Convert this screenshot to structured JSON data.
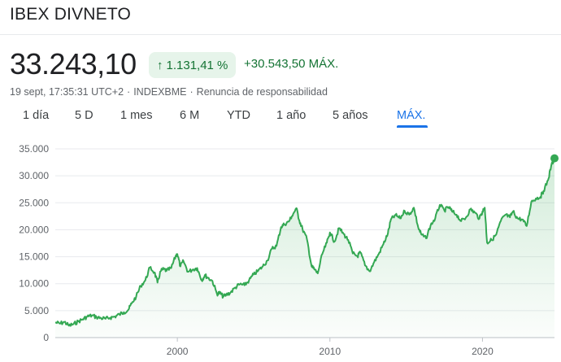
{
  "header": {
    "title": "IBEX DIVNETO",
    "price": "33.243,10",
    "change_percent": "1.131,41 %",
    "change_arrow": "↑",
    "change_absolute": "+30.543,50 MÁX.",
    "meta": {
      "timestamp": "19 sept, 17:35:31 UTC+2",
      "separator": "·",
      "exchange": "INDEXBME",
      "disclaimer": "Renuncia de responsabilidad"
    },
    "accent_color": "#137333",
    "line_color": "#34a853"
  },
  "tabs": [
    {
      "label": "1 día",
      "active": false
    },
    {
      "label": "5 D",
      "active": false
    },
    {
      "label": "1 mes",
      "active": false
    },
    {
      "label": "6 M",
      "active": false
    },
    {
      "label": "YTD",
      "active": false
    },
    {
      "label": "1 año",
      "active": false
    },
    {
      "label": "5 años",
      "active": false
    },
    {
      "label": "MÁX.",
      "active": true
    }
  ],
  "chart_data": {
    "type": "area",
    "x_range": [
      1992.0,
      2024.72
    ],
    "ylim": [
      0,
      35000
    ],
    "y_ticks": [
      0,
      5000,
      10000,
      15000,
      20000,
      25000,
      30000,
      35000
    ],
    "y_tick_labels": [
      "0",
      "5.000",
      "10.000",
      "15.000",
      "20.000",
      "25.000",
      "30.000",
      "35.000"
    ],
    "x_ticks": [
      2000,
      2010,
      2020
    ],
    "x_tick_labels": [
      "2000",
      "2010",
      "2020"
    ],
    "grid": true,
    "legend": "none",
    "series": [
      {
        "x": [
          1992.0,
          1992.3,
          1992.6,
          1992.9,
          1993.2,
          1993.5,
          1993.8,
          1994.1,
          1994.4,
          1994.7,
          1995.0,
          1995.3,
          1995.6,
          1995.9,
          1996.2,
          1996.5,
          1996.8,
          1997.0,
          1997.3,
          1997.6,
          1997.9,
          1998.2,
          1998.5,
          1998.7,
          1998.9,
          1999.1,
          1999.3,
          1999.6,
          1999.9,
          2000.0,
          2000.2,
          2000.4,
          2000.7,
          2001.0,
          2001.3,
          2001.6,
          2001.8,
          2002.0,
          2002.3,
          2002.6,
          2002.8,
          2003.0,
          2003.2,
          2003.5,
          2003.8,
          2004.1,
          2004.4,
          2004.7,
          2005.0,
          2005.3,
          2005.6,
          2005.9,
          2006.2,
          2006.5,
          2006.8,
          2007.0,
          2007.3,
          2007.5,
          2007.8,
          2008.0,
          2008.2,
          2008.5,
          2008.8,
          2009.0,
          2009.2,
          2009.5,
          2009.8,
          2010.0,
          2010.3,
          2010.6,
          2010.9,
          2011.2,
          2011.5,
          2011.8,
          2012.0,
          2012.3,
          2012.6,
          2012.9,
          2013.2,
          2013.5,
          2013.8,
          2014.0,
          2014.3,
          2014.6,
          2014.9,
          2015.2,
          2015.5,
          2015.8,
          2016.0,
          2016.3,
          2016.6,
          2016.9,
          2017.2,
          2017.5,
          2017.8,
          2018.0,
          2018.3,
          2018.6,
          2018.9,
          2019.2,
          2019.5,
          2019.8,
          2020.0,
          2020.15,
          2020.3,
          2020.6,
          2020.9,
          2021.2,
          2021.5,
          2021.8,
          2022.0,
          2022.3,
          2022.6,
          2022.9,
          2023.2,
          2023.5,
          2023.8,
          2024.0,
          2024.3,
          2024.5,
          2024.72
        ],
        "y": [
          2800,
          2600,
          2900,
          2200,
          2500,
          3000,
          3400,
          3900,
          4100,
          3800,
          3600,
          3500,
          3700,
          3900,
          4300,
          4700,
          5200,
          6300,
          7600,
          9600,
          10600,
          13000,
          12100,
          10200,
          12300,
          12700,
          12400,
          12900,
          15200,
          15500,
          13200,
          14200,
          12200,
          12600,
          12900,
          10600,
          11600,
          11100,
          10500,
          8100,
          8300,
          7600,
          7900,
          8400,
          9300,
          9900,
          9700,
          10600,
          11700,
          12400,
          13200,
          14300,
          16500,
          17000,
          20500,
          21000,
          21500,
          22500,
          24000,
          21700,
          20200,
          18200,
          13200,
          12600,
          11900,
          15500,
          17600,
          19500,
          17800,
          20300,
          19200,
          18100,
          15600,
          15100,
          15800,
          13400,
          12300,
          14000,
          15500,
          17300,
          19300,
          21900,
          22700,
          22100,
          23500,
          22800,
          24100,
          20300,
          19100,
          18400,
          20800,
          22100,
          24600,
          23600,
          24200,
          23400,
          22800,
          21600,
          22200,
          23800,
          23200,
          22100,
          23400,
          24100,
          17600,
          18100,
          19100,
          21600,
          22800,
          22300,
          23400,
          22100,
          21900,
          20700,
          25200,
          25800,
          26100,
          27200,
          29200,
          31800,
          33243
        ]
      }
    ]
  }
}
